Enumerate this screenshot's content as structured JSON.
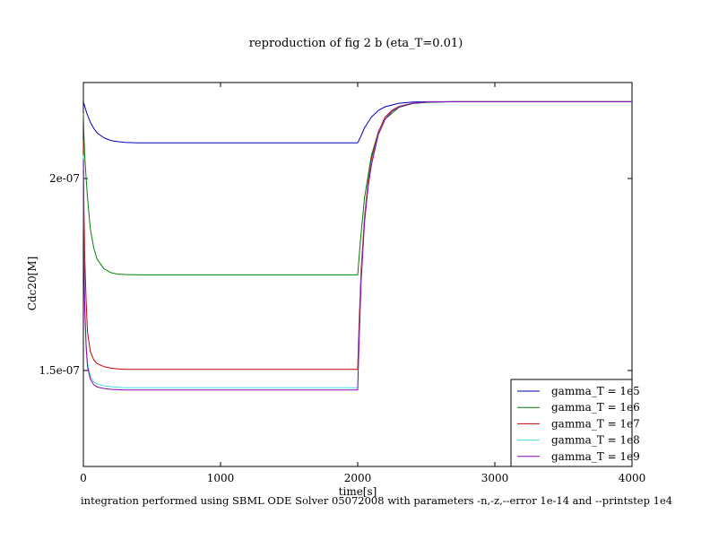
{
  "chart_data": {
    "type": "line",
    "title": "reproduction of fig 2 b (eta_T=0.01)",
    "xlabel": "time[s]",
    "ylabel": "Cdc20[M]",
    "footnote": "integration performed using SBML ODE Solver 05072008 with parameters -n,-z,--error 1e-14 and --printstep 1e4",
    "xlim": [
      0,
      4000
    ],
    "ylim": [
      1.25e-07,
      2.25e-07
    ],
    "x_ticks": [
      0,
      1000,
      2000,
      3000,
      4000
    ],
    "x_tick_labels": [
      "0",
      "1000",
      "2000",
      "3000",
      "4000"
    ],
    "y_ticks": [
      1.5e-07,
      2e-07
    ],
    "y_tick_labels": [
      "1.5e-07",
      "2e-07"
    ],
    "grid": false,
    "legend_position": "bottom-right",
    "series": [
      {
        "name": "gamma_T = 1e5",
        "color": "#0000b4",
        "x": [
          0,
          25,
          50,
          75,
          100,
          150,
          200,
          250,
          300,
          400,
          1000,
          1500,
          1995,
          2000,
          2020,
          2050,
          2100,
          2150,
          2200,
          2300,
          2400,
          2500,
          2700,
          3000,
          3500,
          4000
        ],
        "y": [
          2.2e-07,
          2.17e-07,
          2.147e-07,
          2.131e-07,
          2.119e-07,
          2.106e-07,
          2.099e-07,
          2.096e-07,
          2.094e-07,
          2.093e-07,
          2.093e-07,
          2.093e-07,
          2.093e-07,
          2.093e-07,
          2.108e-07,
          2.132e-07,
          2.16e-07,
          2.177e-07,
          2.187e-07,
          2.196e-07,
          2.199e-07,
          2.2e-07,
          2.2e-07,
          2.2e-07,
          2.2e-07,
          2.2e-07
        ]
      },
      {
        "name": "gamma_T = 1e6",
        "color": "#008000",
        "x": [
          0,
          5,
          10,
          20,
          30,
          50,
          75,
          100,
          150,
          200,
          250,
          300,
          400,
          1000,
          1500,
          1995,
          2000,
          2020,
          2050,
          2100,
          2150,
          2200,
          2300,
          2400,
          2500,
          2700,
          3000,
          3500,
          4000
        ],
        "y": [
          2.17e-07,
          2.1e-07,
          2.06e-07,
          2e-07,
          1.95e-07,
          1.87e-07,
          1.82e-07,
          1.79e-07,
          1.765e-07,
          1.755e-07,
          1.751e-07,
          1.75e-07,
          1.749e-07,
          1.749e-07,
          1.749e-07,
          1.749e-07,
          1.749e-07,
          1.84e-07,
          1.95e-07,
          2.06e-07,
          2.12e-07,
          2.155e-07,
          2.185e-07,
          2.195e-07,
          2.198e-07,
          2.2e-07,
          2.2e-07,
          2.2e-07,
          2.2e-07
        ]
      },
      {
        "name": "gamma_T = 1e7",
        "color": "#c00000",
        "x": [
          0,
          2,
          5,
          10,
          20,
          30,
          50,
          75,
          100,
          150,
          200,
          250,
          300,
          400,
          1000,
          1500,
          1995,
          2000,
          2010,
          2025,
          2050,
          2075,
          2100,
          2150,
          2200,
          2250,
          2300,
          2400,
          2500,
          2700,
          3000,
          3500,
          4000
        ],
        "y": [
          2.1e-07,
          1.99e-07,
          1.9e-07,
          1.8e-07,
          1.68e-07,
          1.6e-07,
          1.55e-07,
          1.528e-07,
          1.518e-07,
          1.51e-07,
          1.506e-07,
          1.504e-07,
          1.503e-07,
          1.503e-07,
          1.503e-07,
          1.503e-07,
          1.503e-07,
          1.503e-07,
          1.62e-07,
          1.76e-07,
          1.9e-07,
          1.99e-07,
          2.05e-07,
          2.12e-07,
          2.16e-07,
          2.178e-07,
          2.188e-07,
          2.196e-07,
          2.199e-07,
          2.2e-07,
          2.2e-07,
          2.2e-07,
          2.2e-07
        ]
      },
      {
        "name": "gamma_T = 1e8",
        "color": "#40e0e0",
        "x": [
          0,
          2,
          5,
          10,
          20,
          30,
          50,
          75,
          100,
          150,
          200,
          250,
          300,
          400,
          1000,
          1500,
          1995,
          2000,
          2010,
          2025,
          2050,
          2075,
          2100,
          2150,
          2200,
          2250,
          2300,
          2400,
          2500,
          2700,
          3000,
          3500,
          4000
        ],
        "y": [
          2.06e-07,
          1.9e-07,
          1.78e-07,
          1.68e-07,
          1.57e-07,
          1.52e-07,
          1.485e-07,
          1.47e-07,
          1.465e-07,
          1.46e-07,
          1.458e-07,
          1.456e-07,
          1.455e-07,
          1.455e-07,
          1.455e-07,
          1.455e-07,
          1.455e-07,
          1.455e-07,
          1.58e-07,
          1.74e-07,
          1.89e-07,
          1.98e-07,
          2.04e-07,
          2.115e-07,
          2.155e-07,
          2.176e-07,
          2.187e-07,
          2.196e-07,
          2.199e-07,
          2.2e-07,
          2.2e-07,
          2.2e-07,
          2.2e-07
        ]
      },
      {
        "name": "gamma_T = 1e9",
        "color": "#9000b8",
        "x": [
          0,
          2,
          5,
          10,
          20,
          30,
          50,
          75,
          100,
          150,
          200,
          250,
          300,
          400,
          1000,
          1500,
          1995,
          2000,
          2010,
          2025,
          2050,
          2075,
          2100,
          2150,
          2200,
          2250,
          2300,
          2400,
          2500,
          2700,
          3000,
          3500,
          4000
        ],
        "y": [
          2.05e-07,
          1.88e-07,
          1.76e-07,
          1.66e-07,
          1.56e-07,
          1.51e-07,
          1.478e-07,
          1.463e-07,
          1.457e-07,
          1.453e-07,
          1.451e-07,
          1.45e-07,
          1.449e-07,
          1.449e-07,
          1.449e-07,
          1.449e-07,
          1.449e-07,
          1.449e-07,
          1.57e-07,
          1.73e-07,
          1.885e-07,
          1.975e-07,
          2.035e-07,
          2.113e-07,
          2.154e-07,
          2.175e-07,
          2.186e-07,
          2.196e-07,
          2.199e-07,
          2.2e-07,
          2.2e-07,
          2.2e-07,
          2.2e-07
        ]
      }
    ]
  }
}
